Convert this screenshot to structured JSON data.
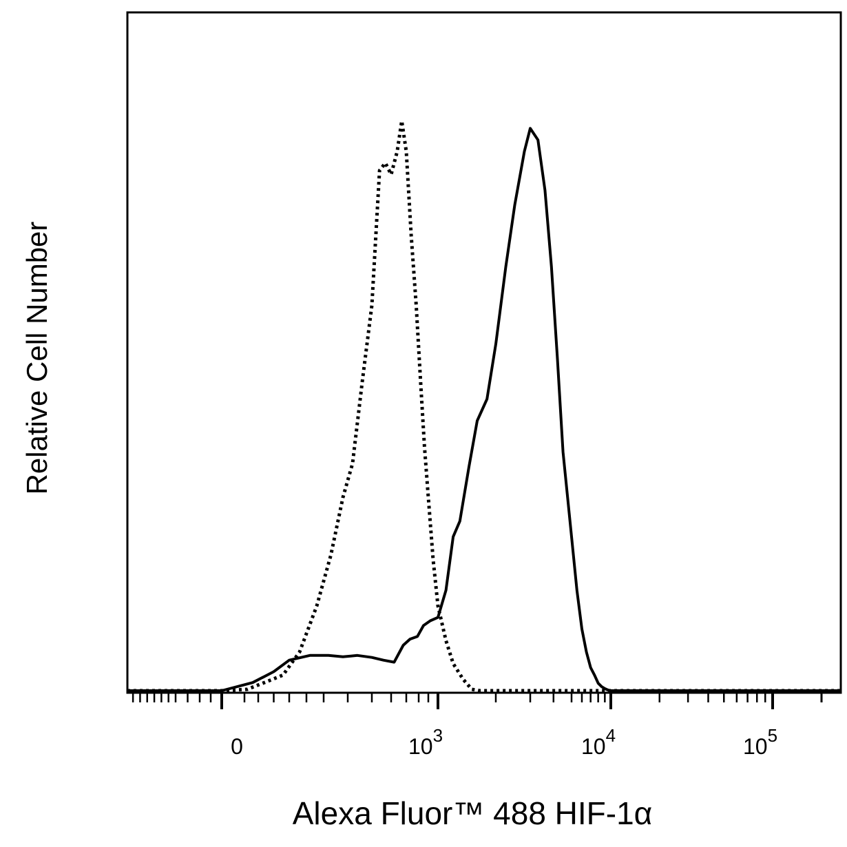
{
  "chart_data": {
    "type": "line",
    "xlabel": "Alexa Fluor™ 488 HIF-1α",
    "ylabel": "Relative Cell Number",
    "x_scale": "biexponential",
    "x_ticks": [
      {
        "value": 0,
        "base": "0",
        "exp": ""
      },
      {
        "value": 1000,
        "base": "10",
        "exp": "3"
      },
      {
        "value": 10000,
        "base": "10",
        "exp": "4"
      },
      {
        "value": 100000,
        "base": "10",
        "exp": "5"
      }
    ],
    "ylim": [
      0,
      100
    ],
    "grid": false,
    "legend": "none",
    "series": [
      {
        "style": "dotted",
        "color": "#000000",
        "x": [
          -200,
          -50,
          0,
          60,
          120,
          180,
          230,
          280,
          330,
          380,
          420,
          460,
          500,
          540,
          570,
          600,
          640,
          670,
          700,
          740,
          780,
          820,
          860,
          900,
          950,
          1000,
          1100,
          1200,
          1350,
          1500,
          1650,
          1800,
          2000
        ],
        "y": [
          0,
          0,
          0,
          0.2,
          1.2,
          2.3,
          5.7,
          12.5,
          20,
          28.5,
          33.5,
          45.5,
          56.8,
          76.7,
          77.8,
          76.1,
          79.5,
          84,
          79.5,
          67,
          56.8,
          45.5,
          36,
          28.5,
          19.3,
          12.5,
          7.4,
          4,
          1.7,
          0.2,
          0,
          0,
          0
        ]
      },
      {
        "style": "solid",
        "color": "#000000",
        "x": [
          -200,
          -50,
          0,
          80,
          150,
          200,
          260,
          320,
          380,
          440,
          500,
          560,
          620,
          680,
          730,
          790,
          850,
          920,
          1000,
          1100,
          1200,
          1300,
          1450,
          1600,
          1800,
          2000,
          2250,
          2500,
          2800,
          3000,
          3300,
          3600,
          3900,
          4200,
          4500,
          5000,
          5500,
          6000,
          6500,
          7000,
          7500,
          8000,
          8500,
          9000,
          9500,
          10000,
          20000,
          60000,
          150000
        ],
        "y": [
          0,
          0,
          0,
          1.2,
          2.8,
          4.5,
          5.2,
          5.2,
          5,
          5.2,
          4.9,
          4.5,
          4.2,
          6.7,
          7.6,
          8,
          9.6,
          10.3,
          10.8,
          14.8,
          22.7,
          25,
          33,
          39.8,
          43,
          51.1,
          62.5,
          71.6,
          79.5,
          82.9,
          81.2,
          73.8,
          62.5,
          48.9,
          35.2,
          22.7,
          14.8,
          9.1,
          5.7,
          3.4,
          2.3,
          1.1,
          0.6,
          0.3,
          0.1,
          0,
          0,
          0,
          0
        ]
      }
    ]
  }
}
